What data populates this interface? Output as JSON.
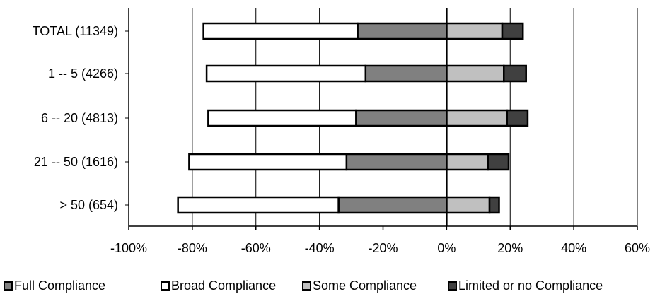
{
  "chart_data": {
    "type": "bar",
    "orientation": "horizontal",
    "stacked": "diverging",
    "categories": [
      "TOTAL (11349)",
      "1 -- 5 (4266)",
      "6 -- 20 (4813)",
      "21 -- 50 (1616)",
      "> 50 (654)"
    ],
    "series": [
      {
        "name": "Full Compliance",
        "color": "#808080",
        "values": [
          -28,
          -25.5,
          -28.5,
          -31.5,
          -34
        ]
      },
      {
        "name": "Broad Compliance",
        "color": "#ffffff",
        "values": [
          -48.5,
          -50,
          -46.5,
          -49.5,
          -50.5
        ]
      },
      {
        "name": "Some Compliance",
        "color": "#c0c0c0",
        "values": [
          17.5,
          18,
          19,
          13,
          13.5
        ]
      },
      {
        "name": "Limited or no Compliance",
        "color": "#404040",
        "values": [
          6.5,
          7,
          6.5,
          6.5,
          3
        ]
      }
    ],
    "xlim": [
      -100,
      60
    ],
    "xticks": [
      -100,
      -80,
      -60,
      -40,
      -20,
      0,
      20,
      40,
      60
    ],
    "xtick_labels": [
      "-100%",
      "-80%",
      "-60%",
      "-40%",
      "-20%",
      "0%",
      "20%",
      "40%",
      "60%"
    ],
    "grid": true,
    "legend_position": "bottom"
  }
}
